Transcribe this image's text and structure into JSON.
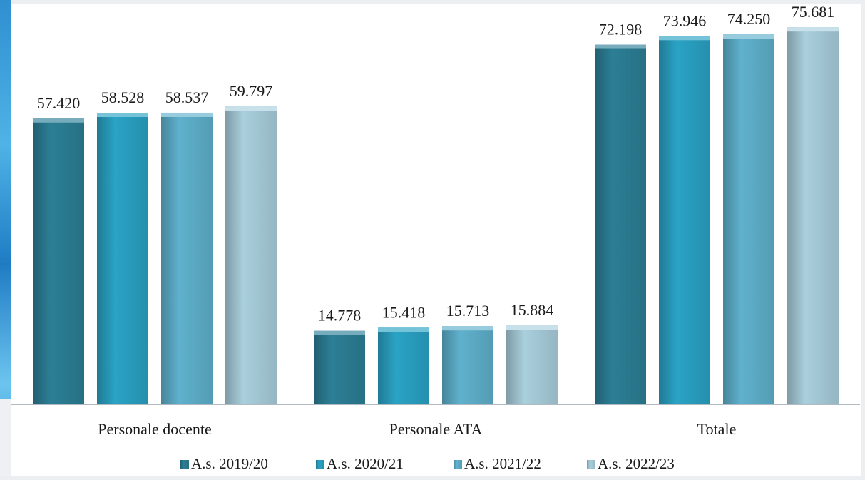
{
  "chart_data": {
    "type": "bar",
    "categories": [
      "Personale docente",
      "Personale ATA",
      "Totale"
    ],
    "series": [
      {
        "name": "A.s. 2019/20",
        "values": [
          57420,
          14778,
          72198
        ],
        "labels": [
          "57.420",
          "14.778",
          "72.198"
        ],
        "color": "#2c7f96"
      },
      {
        "name": "A.s. 2020/21",
        "values": [
          58528,
          15418,
          73946
        ],
        "labels": [
          "58.528",
          "15.418",
          "73.946"
        ],
        "color": "#2aa3c5"
      },
      {
        "name": "A.s. 2021/22",
        "values": [
          58537,
          15713,
          74250
        ],
        "labels": [
          "58.537",
          "15.713",
          "74.250"
        ],
        "color": "#5fb1cd"
      },
      {
        "name": "A.s. 2022/23",
        "values": [
          59797,
          15884,
          75681
        ],
        "labels": [
          "59.797",
          "15.884",
          "75.681"
        ],
        "color": "#a9cfdd"
      }
    ],
    "ylim": [
      0,
      80000
    ],
    "grid": false,
    "legend": "bottom",
    "title": "",
    "xlabel": "",
    "ylabel": ""
  }
}
